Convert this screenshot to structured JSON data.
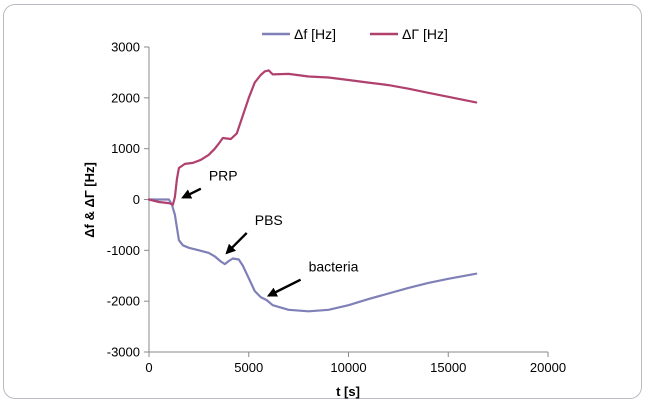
{
  "chart_data": {
    "type": "line",
    "title": "",
    "xlabel": "t [s]",
    "ylabel": "Δf & ΔΓ [Hz]",
    "xlim": [
      0,
      20000
    ],
    "ylim": [
      -3000,
      3000
    ],
    "xticks": [
      0,
      5000,
      10000,
      15000,
      20000
    ],
    "yticks": [
      -3000,
      -2000,
      -1000,
      0,
      1000,
      2000,
      3000
    ],
    "grid": false,
    "legend_position": "top",
    "series": [
      {
        "name": "Δf [Hz]",
        "color": "#8080b8",
        "x": [
          0,
          500,
          1000,
          1150,
          1300,
          1400,
          1500,
          1700,
          2000,
          2500,
          3000,
          3300,
          3600,
          3800,
          4000,
          4200,
          4500,
          4700,
          5000,
          5300,
          5600,
          5900,
          6200,
          7000,
          8000,
          9000,
          10000,
          11000,
          12000,
          13000,
          14000,
          15000,
          16400
        ],
        "values": [
          0,
          0,
          0,
          -100,
          -300,
          -550,
          -800,
          -900,
          -950,
          -1000,
          -1050,
          -1120,
          -1220,
          -1270,
          -1210,
          -1160,
          -1180,
          -1300,
          -1550,
          -1800,
          -1920,
          -1980,
          -2080,
          -2170,
          -2200,
          -2170,
          -2080,
          -1960,
          -1850,
          -1740,
          -1640,
          -1560,
          -1460
        ]
      },
      {
        "name": "ΔΓ [Hz]",
        "color": "#b0406e",
        "x": [
          0,
          500,
          1000,
          1200,
          1300,
          1400,
          1500,
          1800,
          2200,
          2600,
          3000,
          3300,
          3500,
          3700,
          3900,
          4100,
          4400,
          4700,
          5000,
          5300,
          5600,
          5800,
          6000,
          6200,
          7000,
          8000,
          9000,
          10000,
          11000,
          12000,
          13000,
          14000,
          15000,
          16400
        ],
        "values": [
          0,
          -50,
          -70,
          -100,
          50,
          400,
          620,
          700,
          720,
          780,
          880,
          1000,
          1100,
          1210,
          1200,
          1190,
          1300,
          1650,
          2000,
          2300,
          2450,
          2520,
          2540,
          2460,
          2470,
          2420,
          2400,
          2350,
          2300,
          2250,
          2180,
          2100,
          2020,
          1910
        ]
      }
    ],
    "annotations": [
      {
        "text": "PRP",
        "point": [
          1500,
          -20
        ],
        "label_at": [
          3000,
          370
        ]
      },
      {
        "text": "PBS",
        "point": [
          3700,
          -1110
        ],
        "label_at": [
          5300,
          -500
        ]
      },
      {
        "text": "bacteria",
        "point": [
          5800,
          -1950
        ],
        "label_at": [
          8000,
          -1420
        ]
      }
    ]
  }
}
